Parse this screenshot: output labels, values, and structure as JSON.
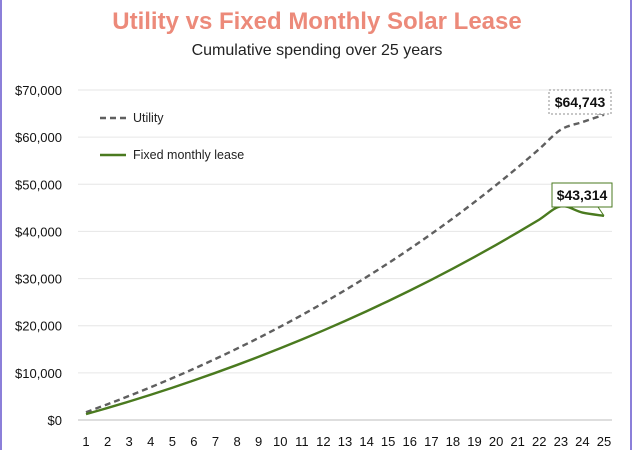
{
  "chart_data": {
    "type": "line",
    "title": "Utility vs Fixed Monthly Solar Lease",
    "subtitle": "Cumulative spending over 25 years",
    "xlabel": "",
    "ylabel": "",
    "x": [
      1,
      2,
      3,
      4,
      5,
      6,
      7,
      8,
      9,
      10,
      11,
      12,
      13,
      14,
      15,
      16,
      17,
      18,
      19,
      20,
      21,
      22,
      23,
      24,
      25
    ],
    "ylim": [
      0,
      70000
    ],
    "yticks": [
      0,
      10000,
      20000,
      30000,
      40000,
      50000,
      60000,
      70000
    ],
    "ytick_labels": [
      "$0",
      "$10,000",
      "$20,000",
      "$30,000",
      "$40,000",
      "$50,000",
      "$60,000",
      "$70,000"
    ],
    "grid": "horizontal",
    "legend_position": "top-left",
    "series": [
      {
        "name": "Utility",
        "color": "#5f5f5f",
        "style": "dashed",
        "values": [
          1650,
          3350,
          5120,
          6960,
          8880,
          10880,
          12970,
          15150,
          17420,
          19790,
          22260,
          24840,
          27530,
          30330,
          33250,
          36290,
          39470,
          42780,
          46230,
          49830,
          53580,
          57490,
          61580,
          63200,
          64743
        ],
        "end_label": "$64,743"
      },
      {
        "name": "Fixed monthly lease",
        "color": "#4a7a1f",
        "style": "solid",
        "values": [
          1250,
          2560,
          3930,
          5360,
          6850,
          8400,
          10010,
          11680,
          13410,
          15210,
          17070,
          19000,
          21000,
          23070,
          25220,
          27440,
          29740,
          32120,
          34590,
          37140,
          39780,
          42510,
          45330,
          44000,
          43314
        ],
        "end_label": "$43,314"
      }
    ]
  }
}
